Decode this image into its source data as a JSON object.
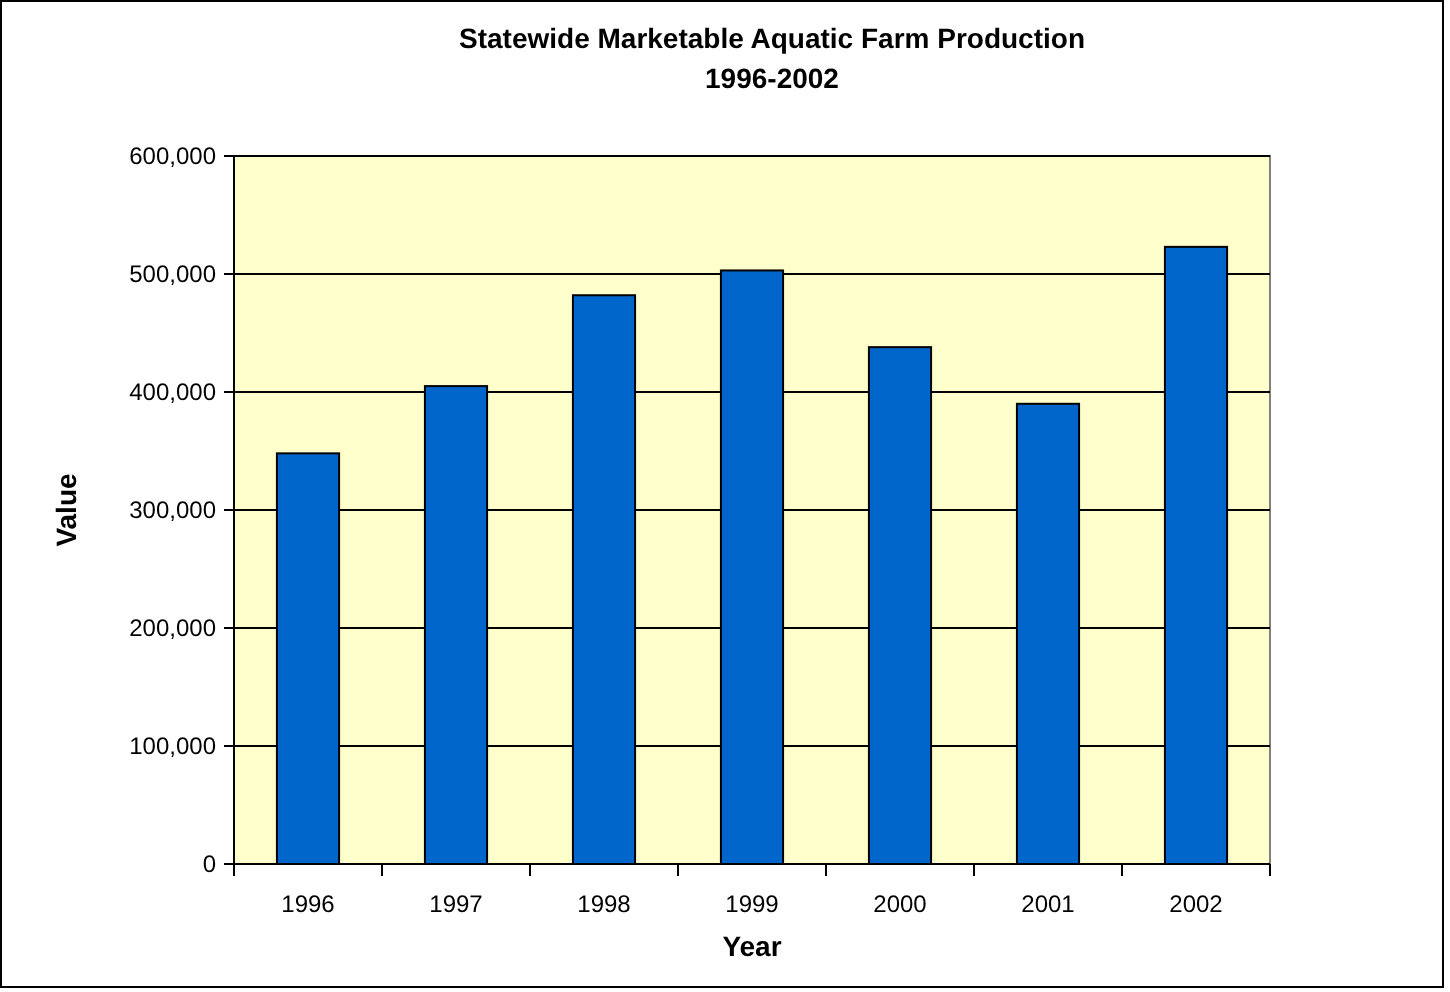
{
  "chart_data": {
    "type": "bar",
    "title": "Statewide Marketable Aquatic Farm Production",
    "subtitle": "1996-2002",
    "xlabel": "Year",
    "ylabel": "Value",
    "categories": [
      "1996",
      "1997",
      "1998",
      "1999",
      "2000",
      "2001",
      "2002"
    ],
    "values": [
      348000,
      405000,
      482000,
      503000,
      438000,
      390000,
      523000
    ],
    "color": "#0066cc",
    "ylim": [
      0,
      600000
    ],
    "yticks": [
      {
        "value": 0,
        "label": "0"
      },
      {
        "value": 100000,
        "label": "100,000"
      },
      {
        "value": 200000,
        "label": "200,000"
      },
      {
        "value": 300000,
        "label": "300,000"
      },
      {
        "value": 400000,
        "label": "400,000"
      },
      {
        "value": 500000,
        "label": "500,000"
      },
      {
        "value": 600000,
        "label": "600,000"
      }
    ],
    "grid": "y"
  }
}
